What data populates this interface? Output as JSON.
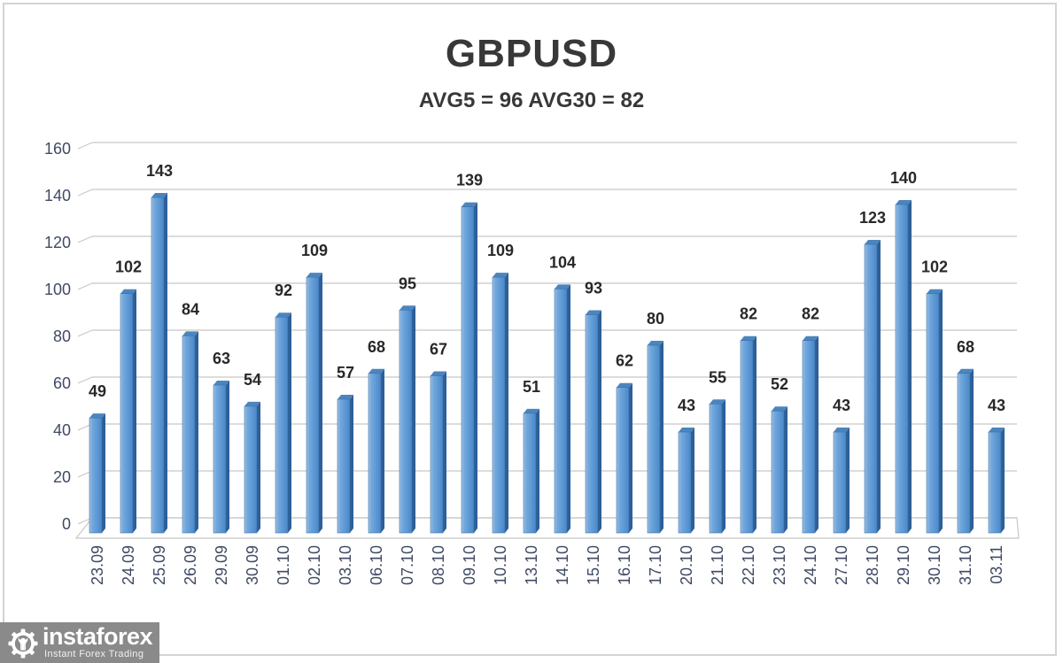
{
  "chart_data": {
    "type": "bar",
    "title": "GBPUSD",
    "subtitle": "AVG5 = 96 AVG30 = 82",
    "categories": [
      "23.09",
      "24.09",
      "25.09",
      "26.09",
      "29.09",
      "30.09",
      "01.10",
      "02.10",
      "03.10",
      "06.10",
      "07.10",
      "08.10",
      "09.10",
      "10.10",
      "13.10",
      "14.10",
      "15.10",
      "16.10",
      "17.10",
      "20.10",
      "21.10",
      "22.10",
      "23.10",
      "24.10",
      "27.10",
      "28.10",
      "29.10",
      "30.10",
      "31.10",
      "03.11"
    ],
    "values": [
      49,
      102,
      143,
      84,
      63,
      54,
      92,
      109,
      57,
      68,
      95,
      67,
      139,
      109,
      51,
      104,
      93,
      62,
      80,
      43,
      55,
      82,
      52,
      82,
      43,
      123,
      140,
      102,
      68,
      43
    ],
    "yticks": [
      0,
      20,
      40,
      60,
      80,
      100,
      120,
      140,
      160
    ],
    "ylim": [
      0,
      160
    ],
    "xlabel": "",
    "ylabel": "",
    "grid": "horizontal",
    "legend": "none",
    "style": "3d-column",
    "colors": {
      "bar_face": "#5E99D4",
      "bar_face_light": "#A6C9EA",
      "bar_face_dark": "#4A87C7",
      "bar_side": "#2D5F98",
      "bar_top": "#4C85BE",
      "bar_outline": "#3A6EA5",
      "gridline": "#C8C8C8",
      "axis_label": "#3F4A63",
      "value_label": "#282828",
      "title": "#383838"
    }
  },
  "branding": {
    "logo_text": "instaforex",
    "logo_tagline": "Instant Forex Trading",
    "logo_bg": "#8a8a8a"
  }
}
